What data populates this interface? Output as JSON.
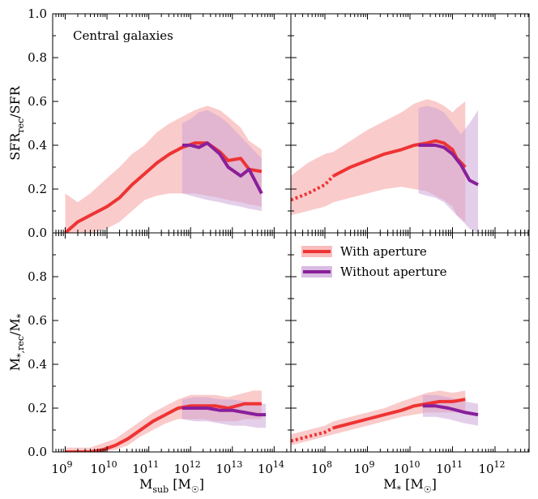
{
  "chart_data": {
    "type": "line",
    "annotation": "Central galaxies",
    "colors": {
      "with": "#ee3333",
      "without": "#8a1f9a",
      "with_band": "#f6a0a0",
      "without_band": "#c9a0d6"
    },
    "legend": {
      "placement": "upper-left of bottom-right panel",
      "entries": [
        "With aperture",
        "Without aperture"
      ]
    },
    "xaxes": {
      "left": {
        "label_main": "M",
        "label_sub": "sub",
        "label_unit": " [M",
        "label_unit_sub": "☉",
        "label_close": "]",
        "range_log": [
          8.7,
          14.4
        ],
        "ticks": [
          9,
          10,
          11,
          12,
          13,
          14
        ]
      },
      "right": {
        "label_main": "M",
        "label_sub": "*",
        "label_unit": " [M",
        "label_unit_sub": "☉",
        "label_close": "]",
        "range_log": [
          7.2,
          12.8
        ],
        "ticks": [
          8,
          9,
          10,
          11,
          12
        ]
      }
    },
    "yaxes": {
      "top": {
        "label_main": "SFR",
        "label_sub": "rec",
        "label_rest": "/SFR",
        "range": [
          0,
          1
        ],
        "ticks": [
          "0.0",
          "0.2",
          "0.4",
          "0.6",
          "0.8",
          "1.0"
        ]
      },
      "bottom": {
        "label_main": "M",
        "label_sub": "*,rec",
        "label_rest": "/M",
        "label_rest_sub": "*",
        "range": [
          0,
          1
        ],
        "ticks": [
          "0.0",
          "0.2",
          "0.4",
          "0.6",
          "0.8"
        ]
      }
    },
    "panels": [
      {
        "id": "top-left",
        "xaxis": "left",
        "yaxis": "top",
        "series": [
          {
            "name": "With aperture",
            "dotted_below": null,
            "x": [
              9.0,
              9.3,
              9.6,
              10.0,
              10.3,
              10.6,
              10.9,
              11.2,
              11.5,
              11.8,
              12.1,
              12.4,
              12.7,
              12.9,
              13.2,
              13.4,
              13.7
            ],
            "y": [
              0.0,
              0.05,
              0.08,
              0.12,
              0.16,
              0.22,
              0.27,
              0.32,
              0.36,
              0.39,
              0.41,
              0.41,
              0.37,
              0.33,
              0.34,
              0.29,
              0.28
            ],
            "lo": [
              -0.05,
              -0.05,
              -0.02,
              0.02,
              0.05,
              0.1,
              0.15,
              0.17,
              0.18,
              0.18,
              0.18,
              0.17,
              0.16,
              0.15,
              0.14,
              0.13,
              0.12
            ],
            "hi": [
              0.18,
              0.14,
              0.18,
              0.25,
              0.3,
              0.36,
              0.4,
              0.46,
              0.5,
              0.53,
              0.56,
              0.58,
              0.56,
              0.53,
              0.48,
              0.42,
              0.38
            ]
          },
          {
            "name": "Without aperture",
            "dotted_below": null,
            "x": [
              11.8,
              12.0,
              12.2,
              12.4,
              12.7,
              12.9,
              13.2,
              13.4,
              13.7
            ],
            "y": [
              0.4,
              0.4,
              0.39,
              0.41,
              0.36,
              0.3,
              0.26,
              0.29,
              0.18
            ],
            "lo": [
              0.18,
              0.17,
              0.16,
              0.15,
              0.14,
              0.13,
              0.12,
              0.11,
              0.1
            ],
            "hi": [
              0.5,
              0.52,
              0.55,
              0.56,
              0.53,
              0.5,
              0.44,
              0.4,
              0.34
            ]
          }
        ]
      },
      {
        "id": "top-right",
        "xaxis": "right",
        "yaxis": "top",
        "series": [
          {
            "name": "With aperture",
            "dotted_below": 8.2,
            "x": [
              7.2,
              7.6,
              8.0,
              8.2,
              8.6,
              9.0,
              9.4,
              9.8,
              10.1,
              10.4,
              10.6,
              10.8,
              11.0,
              11.1,
              11.3
            ],
            "y": [
              0.15,
              0.18,
              0.22,
              0.26,
              0.3,
              0.33,
              0.36,
              0.38,
              0.4,
              0.41,
              0.42,
              0.41,
              0.38,
              0.34,
              0.3
            ],
            "lo": [
              0.08,
              0.1,
              0.12,
              0.14,
              0.16,
              0.18,
              0.2,
              0.21,
              0.2,
              0.19,
              0.17,
              0.15,
              0.12,
              0.08,
              0.05
            ],
            "hi": [
              0.26,
              0.32,
              0.36,
              0.37,
              0.42,
              0.47,
              0.51,
              0.55,
              0.59,
              0.61,
              0.6,
              0.58,
              0.55,
              0.57,
              0.6
            ]
          },
          {
            "name": "Without aperture",
            "dotted_below": null,
            "x": [
              10.2,
              10.4,
              10.6,
              10.8,
              11.0,
              11.2,
              11.4,
              11.6
            ],
            "y": [
              0.4,
              0.4,
              0.4,
              0.39,
              0.36,
              0.31,
              0.24,
              0.22
            ],
            "lo": [
              0.18,
              0.17,
              0.16,
              0.14,
              0.1,
              0.06,
              0.02,
              0.0
            ],
            "hi": [
              0.57,
              0.58,
              0.57,
              0.55,
              0.5,
              0.45,
              0.5,
              0.56
            ]
          }
        ]
      },
      {
        "id": "bottom-left",
        "xaxis": "left",
        "yaxis": "bottom",
        "series": [
          {
            "name": "With aperture",
            "dotted_below": null,
            "x": [
              9.0,
              9.3,
              9.6,
              9.9,
              10.2,
              10.5,
              10.8,
              11.1,
              11.4,
              11.7,
              12.0,
              12.3,
              12.6,
              12.9,
              13.1,
              13.3,
              13.5,
              13.7
            ],
            "y": [
              0.0,
              0.0,
              0.0,
              0.01,
              0.03,
              0.06,
              0.1,
              0.14,
              0.17,
              0.2,
              0.21,
              0.21,
              0.21,
              0.2,
              0.21,
              0.22,
              0.22,
              0.22
            ],
            "lo": [
              0.0,
              0.0,
              0.0,
              0.0,
              0.01,
              0.03,
              0.07,
              0.1,
              0.13,
              0.15,
              0.15,
              0.15,
              0.14,
              0.14,
              0.14,
              0.15,
              0.15,
              0.15
            ],
            "hi": [
              0.02,
              0.02,
              0.02,
              0.04,
              0.06,
              0.1,
              0.14,
              0.18,
              0.21,
              0.24,
              0.26,
              0.26,
              0.26,
              0.25,
              0.26,
              0.27,
              0.28,
              0.28
            ]
          },
          {
            "name": "Without aperture",
            "dotted_below": null,
            "x": [
              11.8,
              12.1,
              12.4,
              12.7,
              13.0,
              13.3,
              13.6,
              13.8
            ],
            "y": [
              0.2,
              0.2,
              0.2,
              0.19,
              0.19,
              0.18,
              0.17,
              0.17
            ],
            "lo": [
              0.15,
              0.14,
              0.14,
              0.13,
              0.12,
              0.12,
              0.11,
              0.11
            ],
            "hi": [
              0.24,
              0.25,
              0.25,
              0.24,
              0.24,
              0.23,
              0.22,
              0.22
            ]
          }
        ]
      },
      {
        "id": "bottom-right",
        "xaxis": "right",
        "yaxis": "bottom",
        "series": [
          {
            "name": "With aperture",
            "dotted_below": 8.2,
            "x": [
              7.2,
              7.6,
              8.0,
              8.2,
              8.6,
              9.0,
              9.4,
              9.8,
              10.1,
              10.4,
              10.7,
              11.0,
              11.3
            ],
            "y": [
              0.05,
              0.07,
              0.09,
              0.11,
              0.13,
              0.15,
              0.17,
              0.19,
              0.21,
              0.22,
              0.23,
              0.23,
              0.24
            ],
            "lo": [
              0.03,
              0.05,
              0.07,
              0.08,
              0.1,
              0.12,
              0.14,
              0.16,
              0.17,
              0.18,
              0.18,
              0.18,
              0.18
            ],
            "hi": [
              0.08,
              0.1,
              0.12,
              0.14,
              0.16,
              0.18,
              0.2,
              0.23,
              0.25,
              0.27,
              0.28,
              0.27,
              0.28
            ]
          },
          {
            "name": "Without aperture",
            "dotted_below": null,
            "x": [
              10.3,
              10.6,
              10.9,
              11.1,
              11.3,
              11.6
            ],
            "y": [
              0.21,
              0.21,
              0.2,
              0.19,
              0.18,
              0.17
            ],
            "lo": [
              0.16,
              0.16,
              0.15,
              0.14,
              0.13,
              0.12
            ],
            "hi": [
              0.26,
              0.26,
              0.25,
              0.24,
              0.23,
              0.22
            ]
          }
        ]
      }
    ]
  }
}
